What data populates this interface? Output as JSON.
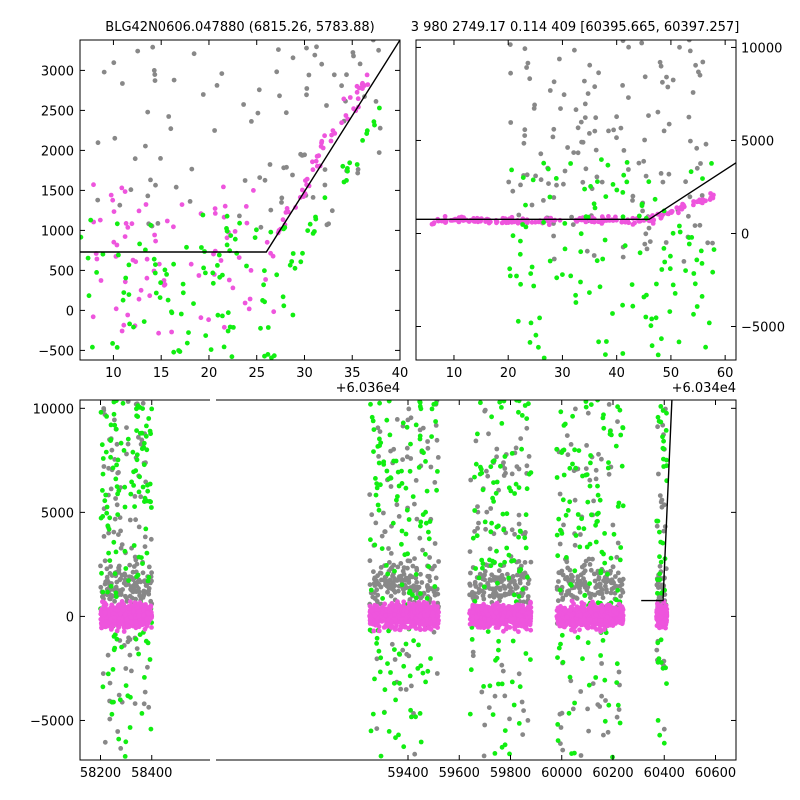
{
  "colors": {
    "grey": "#888888",
    "magenta": "#ee55dd",
    "green": "#11ee11",
    "line": "#000000",
    "frame": "#000000"
  },
  "titles": {
    "left": "BLG42N0606.047880 (6815.26, 5783.88)",
    "right": "3 980 2749.17 0.114 409 [60395.665, 60397.257]"
  },
  "chart_data": [
    {
      "type": "scatter",
      "panel": "top-left",
      "title": "BLG42N0606.047880 (6815.26, 5783.88)",
      "x_offset_label": "+6.036e4",
      "xlim": [
        6.5,
        40
      ],
      "ylim": [
        -620,
        3380
      ],
      "xticks": [
        10,
        15,
        20,
        25,
        30,
        35,
        40
      ],
      "yticks": [
        -500,
        0,
        500,
        1000,
        1500,
        2000,
        2500,
        3000
      ],
      "ytick_side": "left",
      "model_line": [
        [
          6.5,
          730
        ],
        [
          26,
          730
        ],
        [
          40,
          3380
        ]
      ],
      "series": [
        {
          "color": "grey",
          "x_range": [
            8,
            38
          ],
          "y_range": [
            1000,
            3380
          ],
          "count": 90,
          "seed": 11
        },
        {
          "color": "magenta",
          "x_range": [
            6.5,
            37
          ],
          "y_range": [
            -300,
            1600
          ],
          "count": 130,
          "seed": 12,
          "trend": {
            "from": 27,
            "to": 37,
            "y_from": 1000,
            "y_to": 3000
          }
        },
        {
          "color": "green",
          "x_range": [
            6.5,
            38
          ],
          "y_range": [
            -600,
            1200
          ],
          "count": 120,
          "seed": 13,
          "trend": {
            "from": 29,
            "to": 38,
            "y_from": 600,
            "y_to": 2500
          }
        }
      ]
    },
    {
      "type": "scatter",
      "panel": "top-right",
      "title": "3 980 2749.17 0.114 409 [60395.665, 60397.257]",
      "x_offset_label": "+6.034e4",
      "xlim": [
        3,
        62
      ],
      "ylim": [
        -6800,
        10400
      ],
      "xticks": [
        10,
        20,
        30,
        40,
        50,
        60
      ],
      "yticks": [
        -5000,
        0,
        5000,
        10000
      ],
      "ytick_side": "right",
      "model_line": [
        [
          3,
          760
        ],
        [
          46,
          760
        ],
        [
          62,
          3800
        ]
      ],
      "series": [
        {
          "color": "grey",
          "x_range": [
            20,
            58
          ],
          "y_range": [
            -1500,
            10400
          ],
          "count": 140,
          "seed": 21
        },
        {
          "color": "magenta",
          "x_range": [
            5,
            58
          ],
          "y_range": [
            -400,
            2000
          ],
          "count": 180,
          "seed": 22
        },
        {
          "color": "green",
          "x_range": [
            20,
            58
          ],
          "y_range": [
            -6800,
            4000
          ],
          "count": 120,
          "seed": 23
        }
      ]
    },
    {
      "type": "scatter",
      "panel": "bottom",
      "xlim": [
        58120,
        60680
      ],
      "ylim": [
        -6900,
        10400
      ],
      "xticks": [
        58200,
        58400,
        59400,
        59600,
        59800,
        60000,
        60200,
        60400,
        60600
      ],
      "yticks": [
        -5000,
        0,
        5000,
        10000
      ],
      "ytick_side": "left",
      "model_line": [
        [
          60310,
          760
        ],
        [
          60395,
          760
        ],
        [
          60430,
          10400
        ]
      ],
      "seasons": [
        [
          58200,
          58400
        ],
        [
          59250,
          59520
        ],
        [
          59640,
          59880
        ],
        [
          59980,
          60240
        ],
        [
          60370,
          60410
        ]
      ],
      "series": [
        {
          "color": "grey",
          "y_range": [
            -6900,
            10400
          ],
          "count": 900,
          "seed": 31
        },
        {
          "color": "green",
          "y_range": [
            -6900,
            10400
          ],
          "count": 600,
          "seed": 32
        },
        {
          "color": "magenta",
          "y_range": [
            -1800,
            2500
          ],
          "count": 2600,
          "seed": 33
        }
      ]
    }
  ]
}
